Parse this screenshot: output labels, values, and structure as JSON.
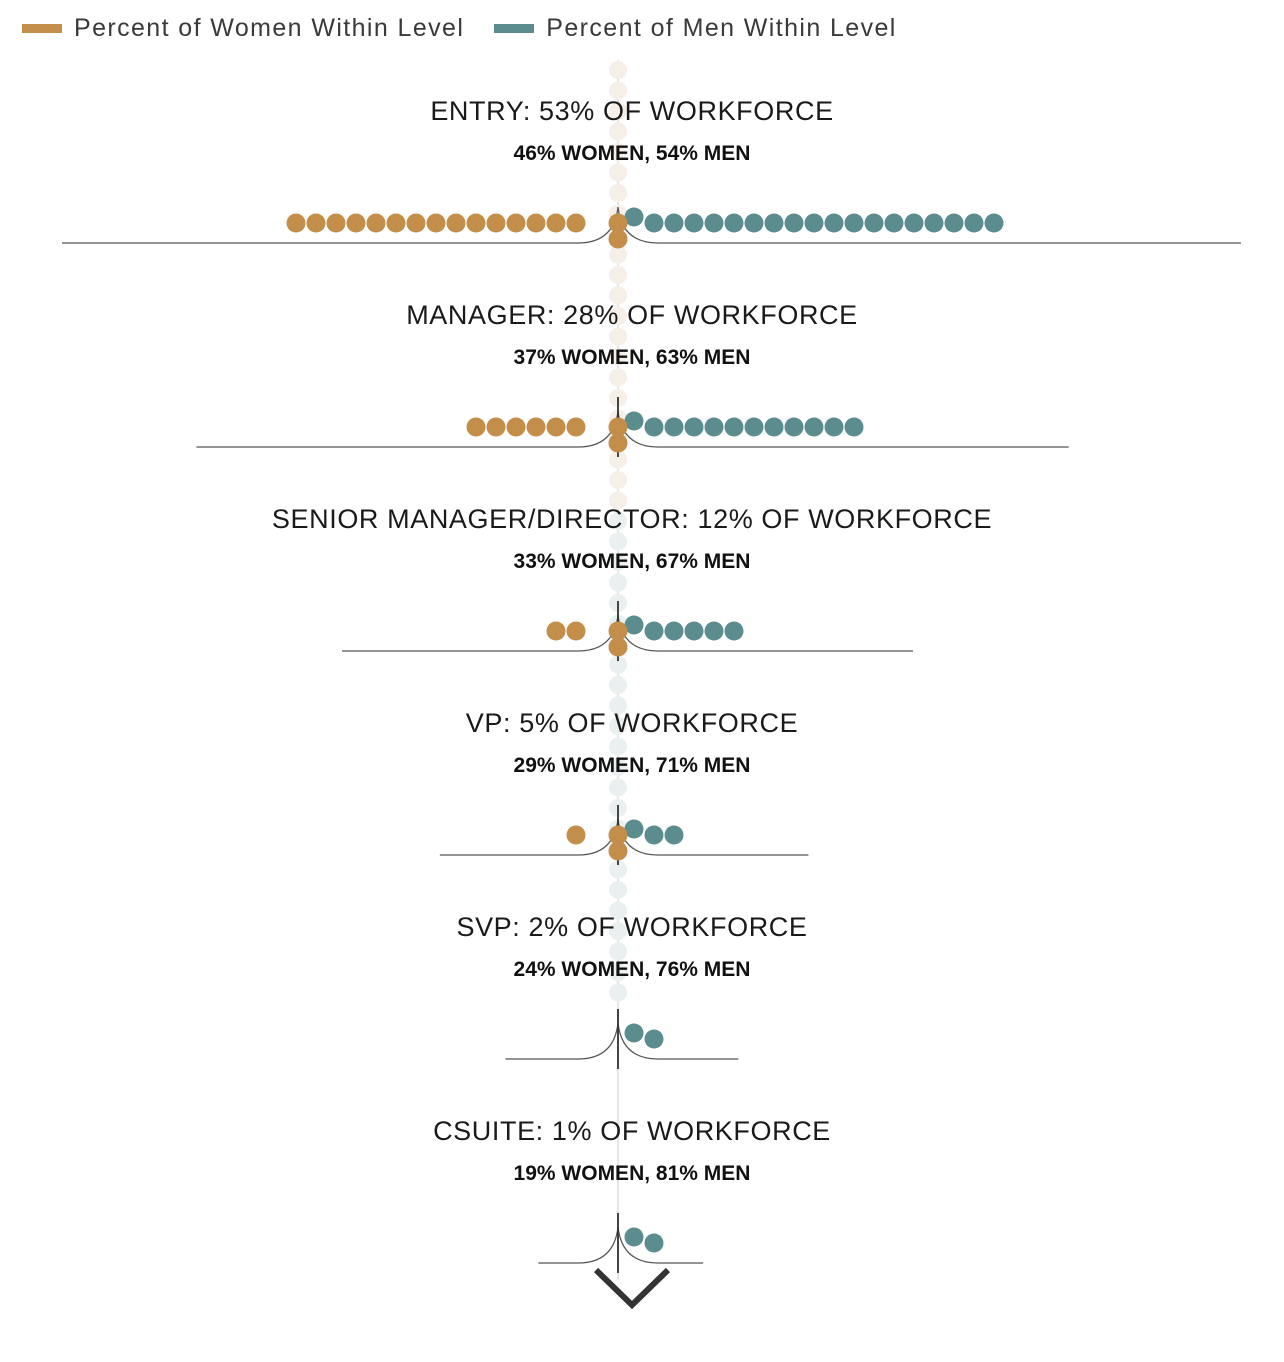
{
  "legend": {
    "women_label": "Percent of Women Within Level",
    "men_label": "Percent of Men Within Level"
  },
  "colors": {
    "women": "#C38D4A",
    "men": "#5B8C8E",
    "stem_light": "#eaf0f0",
    "stem_warm": "#f6efe7"
  },
  "chart_data": {
    "type": "dot-funnel",
    "levels": [
      {
        "title": "ENTRY: 53% OF WORKFORCE",
        "subtitle": "46% WOMEN, 54% MEN",
        "workforce_pct": 53,
        "women_pct": 46,
        "men_pct": 54
      },
      {
        "title": "MANAGER: 28% OF WORKFORCE",
        "subtitle": "37% WOMEN, 63% MEN",
        "workforce_pct": 28,
        "women_pct": 37,
        "men_pct": 63
      },
      {
        "title": "SENIOR MANAGER/DIRECTOR: 12% OF WORKFORCE",
        "subtitle": "33% WOMEN, 67% MEN",
        "workforce_pct": 12,
        "women_pct": 33,
        "men_pct": 67
      },
      {
        "title": "VP: 5% OF WORKFORCE",
        "subtitle": "29% WOMEN, 71% MEN",
        "workforce_pct": 5,
        "women_pct": 29,
        "men_pct": 71
      },
      {
        "title": "SVP: 2% OF WORKFORCE",
        "subtitle": "24% WOMEN, 76% MEN",
        "workforce_pct": 2,
        "women_pct": 24,
        "men_pct": 76
      },
      {
        "title": "CSUITE: 1% OF WORKFORCE",
        "subtitle": "19% WOMEN, 81% MEN",
        "workforce_pct": 1,
        "women_pct": 19,
        "men_pct": 81
      }
    ]
  }
}
